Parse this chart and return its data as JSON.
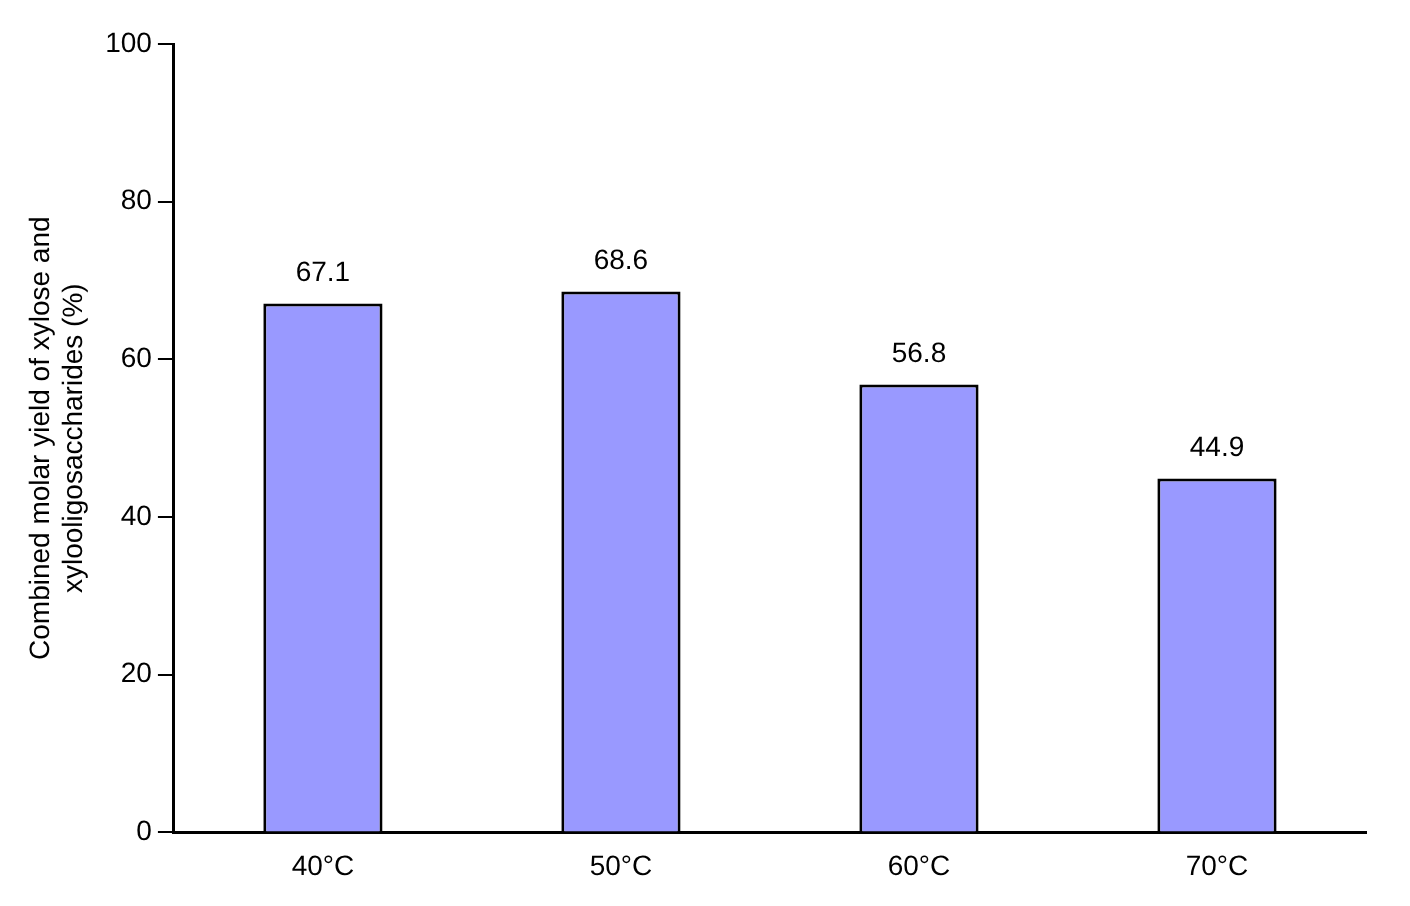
{
  "chart_data": {
    "type": "bar",
    "ylabel": "Combined molar yield of xylose and xylooligosaccharides (%)",
    "categories": [
      "40°C",
      "50°C",
      "60°C",
      "70°C"
    ],
    "values": [
      67.1,
      68.6,
      56.8,
      44.9
    ],
    "color": "#9999ff",
    "ylim": [
      0,
      100
    ],
    "yticks": [
      0,
      20,
      40,
      60,
      80,
      100
    ],
    "grid": false,
    "legend": false,
    "data_labels": true
  }
}
